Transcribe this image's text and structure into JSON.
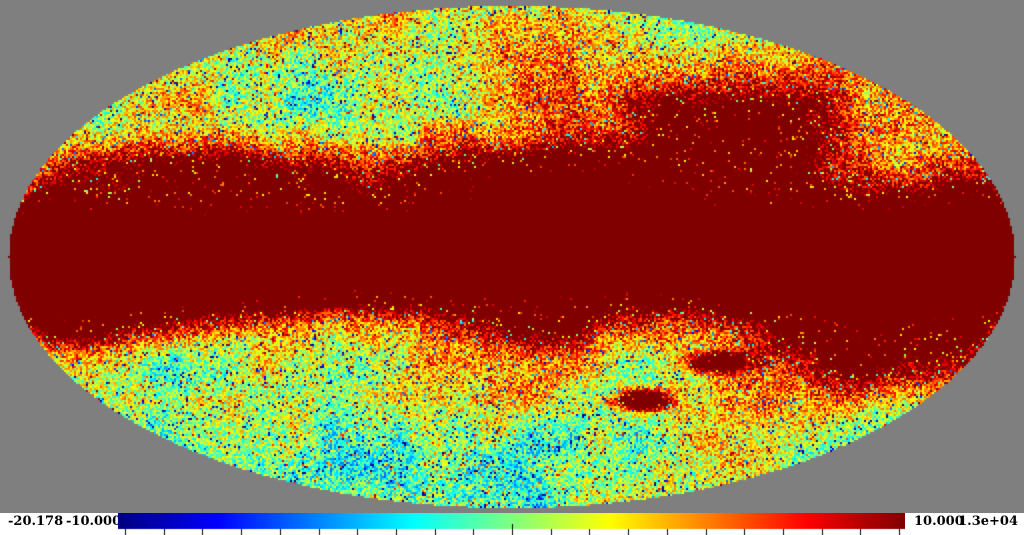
{
  "figure": {
    "background_color": "#7f7f7f",
    "strip_background": "#ffffff"
  },
  "chart_data": {
    "type": "heatmap",
    "kind": "all-sky-map",
    "projection": "mollweide",
    "colormap": "jet",
    "grid": false,
    "legend_position": "bottom-colorbar",
    "data_min": -20.178,
    "data_max": 13000,
    "colorbar": {
      "min_label": "-20.178",
      "lower_label": "-10.000",
      "upper_label": "10.000",
      "max_label": "1.3e+04",
      "scale_min": -10.0,
      "scale_max": 10.0,
      "tick_count": 21,
      "center_tick_index": 10
    },
    "map_model": {
      "base": {
        "level": 0.66,
        "tilt": -0.05,
        "curve": -0.1
      },
      "galactic_plane": {
        "amp": 2.0,
        "sigma_w": 0.17
      },
      "rim": {
        "amp": 1.15,
        "sigma_u": 0.141,
        "lat_sigma": 0.707
      },
      "noise": {
        "fbm_amp": 0.55,
        "white_amp": 0.34,
        "cold_speck_prob": 0.05,
        "cold_speck_dip": 0.35,
        "hot_speck_prob": 0.05,
        "hot_speck_add": 0.3
      },
      "features": [
        {
          "name": "north-central-dark-mass",
          "u": 0.1,
          "w": -0.26,
          "su": 0.26,
          "sw": 0.16,
          "amp": 1.0
        },
        {
          "name": "north-east-spur",
          "u": 0.45,
          "w": -0.5,
          "su": 0.18,
          "sw": 0.18,
          "amp": 0.65
        },
        {
          "name": "north-west-filaments",
          "u": -0.55,
          "w": -0.32,
          "su": 0.28,
          "sw": 0.13,
          "amp": 0.5
        },
        {
          "name": "south-east-dark-mass",
          "u": 0.72,
          "w": 0.3,
          "su": 0.2,
          "sw": 0.26,
          "amp": 0.7
        },
        {
          "name": "south-west-rim-red",
          "u": -0.8,
          "w": 0.22,
          "su": 0.18,
          "sw": 0.14,
          "amp": 0.45
        },
        {
          "name": "south-central-red-extension",
          "u": 0.05,
          "w": 0.28,
          "su": 0.22,
          "sw": 0.1,
          "amp": 0.35
        },
        {
          "name": "east-mid-red",
          "u": 0.62,
          "w": -0.12,
          "su": 0.25,
          "sw": 0.2,
          "amp": 0.35
        },
        {
          "name": "south-small-dark-spot",
          "u": 0.26,
          "w": 0.57,
          "su": 0.05,
          "sw": 0.04,
          "amp": 1.1
        },
        {
          "name": "south-east-small-dark-spot",
          "u": 0.41,
          "w": 0.42,
          "su": 0.05,
          "sw": 0.035,
          "amp": 1.0
        },
        {
          "name": "north-west-green-region",
          "u": -0.36,
          "w": -0.6,
          "su": 0.3,
          "sw": 0.22,
          "amp": -0.22
        }
      ]
    }
  }
}
